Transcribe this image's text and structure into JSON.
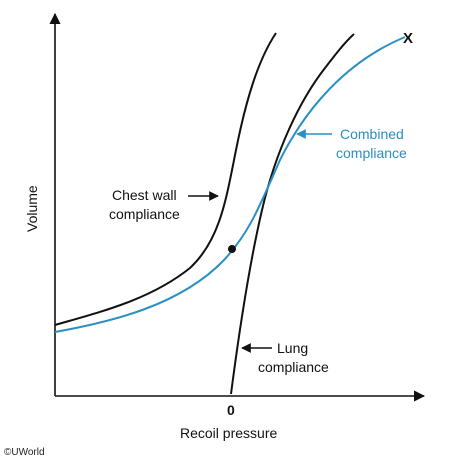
{
  "axes": {
    "x_label": "Recoil pressure",
    "y_label": "Volume",
    "zero_tick": "0"
  },
  "curves": {
    "chest_wall": {
      "label_line1": "Chest wall",
      "label_line2": "compliance",
      "color": "#111111"
    },
    "lung": {
      "label_line1": "Lung",
      "label_line2": "compliance",
      "color": "#111111"
    },
    "combined": {
      "label_line1": "Combined",
      "label_line2": "compliance",
      "color": "#2a8fc4"
    }
  },
  "point_marker": "X",
  "copyright": "©UWorld"
}
